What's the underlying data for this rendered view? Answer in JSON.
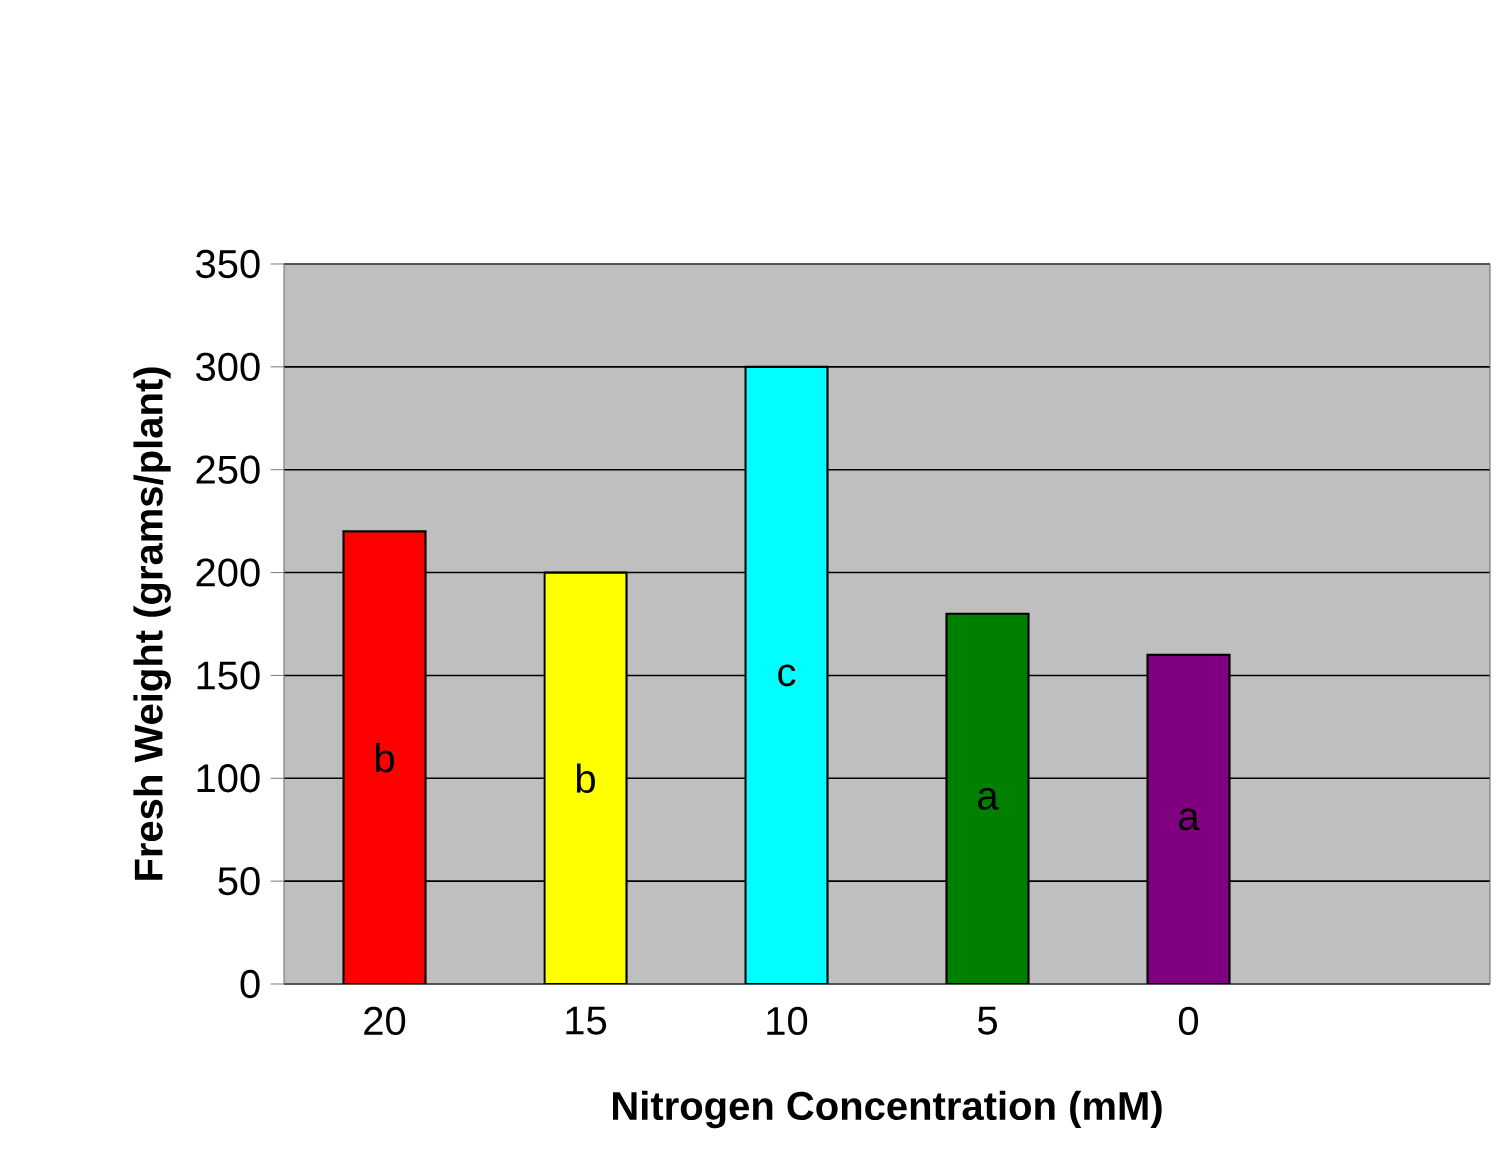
{
  "chart_data": {
    "type": "bar",
    "xlabel": "Nitrogen Concentration (mM)",
    "ylabel": "Fresh Weight (grams/plant)",
    "categories": [
      "20",
      "15",
      "10",
      "5",
      "0",
      null
    ],
    "values": [
      220,
      200,
      300,
      180,
      160,
      null
    ],
    "colors": [
      "#ff0000",
      "#ffff00",
      "#00ffff",
      "#008000",
      "#800080",
      null
    ],
    "ylim": [
      0,
      350
    ],
    "yticks": [
      0,
      50,
      100,
      150,
      200,
      250,
      300,
      350
    ],
    "grid": "y",
    "annotations": [
      "b",
      "b",
      "c",
      "a",
      "a"
    ]
  }
}
